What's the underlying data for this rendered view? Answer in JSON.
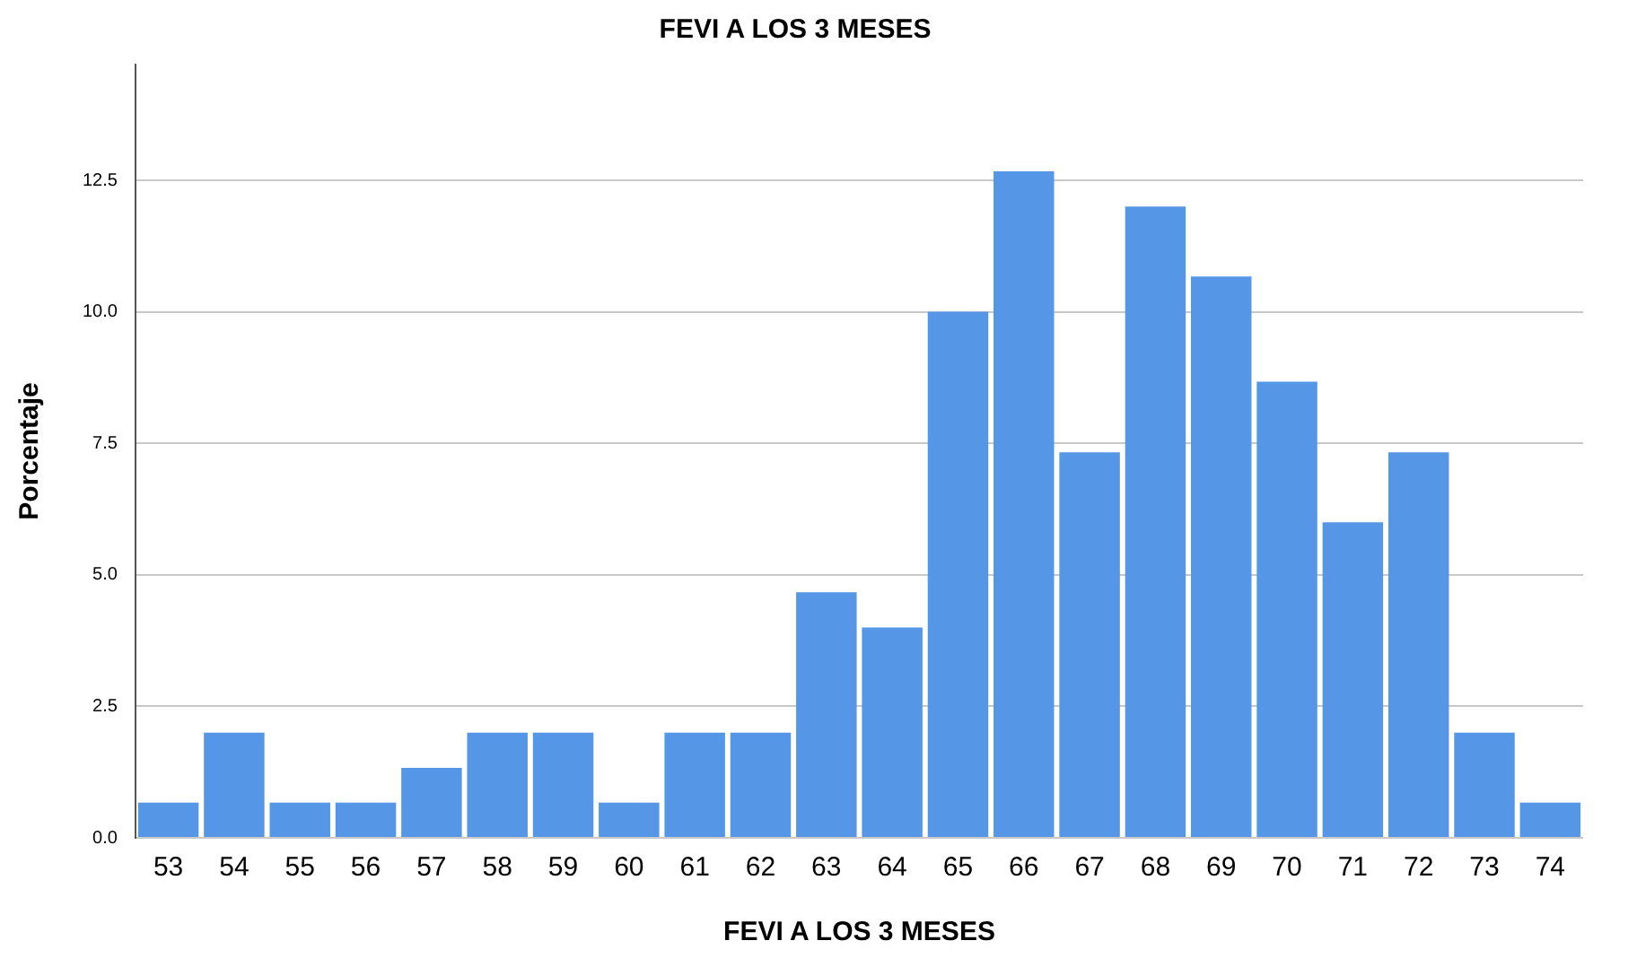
{
  "chart_data": {
    "type": "bar",
    "title": "FEVI A LOS 3 MESES",
    "xlabel": "FEVI A LOS 3 MESES",
    "ylabel": "Porcentaje",
    "categories": [
      "53",
      "54",
      "55",
      "56",
      "57",
      "58",
      "59",
      "60",
      "61",
      "62",
      "63",
      "64",
      "65",
      "66",
      "67",
      "68",
      "69",
      "70",
      "71",
      "72",
      "73",
      "74"
    ],
    "values": [
      0.67,
      2.0,
      0.67,
      0.67,
      1.33,
      2.0,
      2.0,
      0.67,
      2.0,
      2.0,
      4.67,
      4.0,
      10.0,
      12.67,
      7.33,
      12.0,
      10.67,
      8.67,
      6.0,
      7.33,
      2.0,
      0.67
    ],
    "color": "#5596e6",
    "ylim": [
      0,
      14.7
    ],
    "yticks": [
      {
        "value": 0,
        "label": "0.0"
      },
      {
        "value": 2.5,
        "label": "2.5"
      },
      {
        "value": 5,
        "label": "5.0"
      },
      {
        "value": 7.5,
        "label": "7.5"
      },
      {
        "value": 10,
        "label": "10.0"
      },
      {
        "value": 12.5,
        "label": "12.5"
      }
    ],
    "grid": "y"
  }
}
